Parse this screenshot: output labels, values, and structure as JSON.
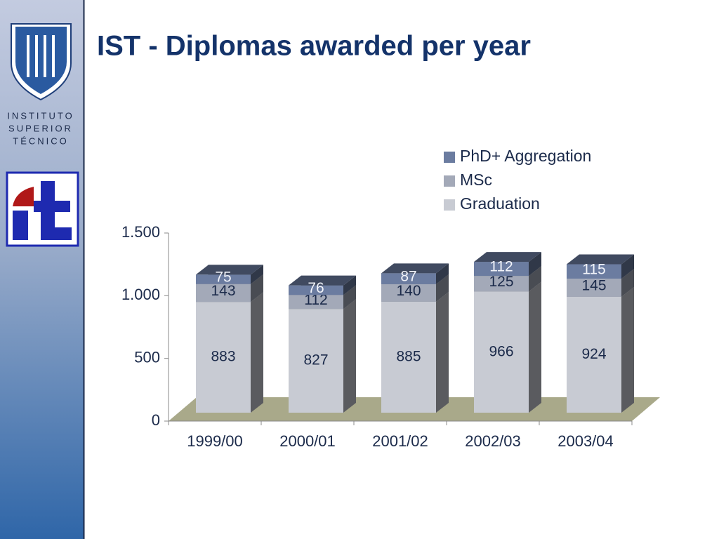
{
  "sidebar": {
    "lines": [
      "INSTITUTO",
      "SUPERIOR",
      "TÉCNICO"
    ]
  },
  "chart_data": {
    "type": "bar3d-stacked",
    "title": "IST - Diplomas awarded per year",
    "categories": [
      "1999/00",
      "2000/01",
      "2001/02",
      "2002/03",
      "2003/04"
    ],
    "series": [
      {
        "name": "Graduation",
        "color": "#c8cbd3",
        "values": [
          883,
          827,
          885,
          966,
          924
        ]
      },
      {
        "name": "MSc",
        "color": "#a3a9b8",
        "values": [
          143,
          112,
          140,
          125,
          145
        ]
      },
      {
        "name": "PhD+ Aggregation",
        "color": "#6b7ca0",
        "values": [
          75,
          76,
          87,
          112,
          115
        ]
      }
    ],
    "ylim": [
      0,
      1500
    ],
    "yticks": [
      0,
      500,
      {
        "value": 1000,
        "label": "1.000"
      },
      {
        "value": 1500,
        "label": "1.500"
      }
    ],
    "legend": "top-right"
  }
}
